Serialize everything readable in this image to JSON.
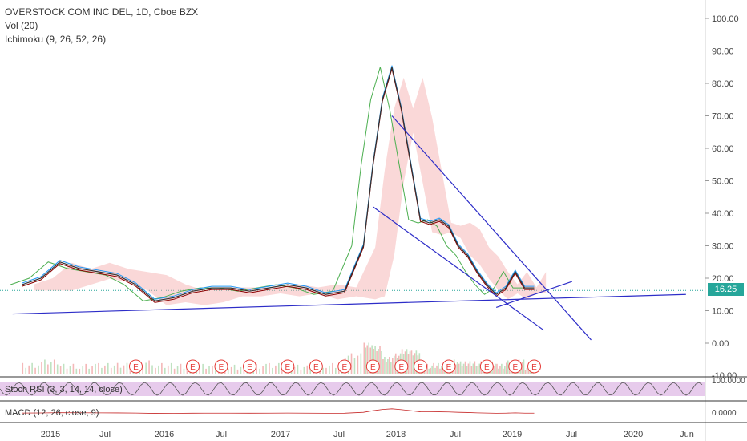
{
  "header": {
    "title": "OVERSTOCK COM INC DEL, 1D, Cboe BZX",
    "vol_label": "Vol (20)",
    "ichimoku_label": "Ichimoku (9, 26, 52, 26)"
  },
  "current_price": "16.25",
  "colors": {
    "price_tag": "#26a69a",
    "trendline": "#2d2dc8",
    "kumo_bull": "#a8d8a8",
    "kumo_bear": "#f4a8a8",
    "conversion_line": "#2196f3",
    "base_line": "#8b0000",
    "lagging_span": "#4caf50",
    "stoch_band": "#e1bee7",
    "earnings_marker": "#e53935",
    "volume_up": "#a5d6a7",
    "volume_down": "#ef9a9a",
    "volume_ma": "#ff9800"
  },
  "icons": {
    "earnings_marker": "E"
  },
  "panes": {
    "stoch": {
      "label": "Stoch RSI (3, 3, 14, 14, close)",
      "axis_label": "100.0000"
    },
    "macd": {
      "label": "MACD (12, 26, close, 9)",
      "axis_label": "0.0000"
    }
  },
  "chart_data": {
    "type": "line",
    "title": "OVERSTOCK COM INC DEL, 1D, Cboe BZX",
    "y_axis_ticks": [
      "100.00",
      "90.00",
      "80.00",
      "70.00",
      "60.00",
      "50.00",
      "40.00",
      "30.00",
      "20.00",
      "10.00",
      "0.00"
    ],
    "y_axis_extra": "-10.00",
    "ylim": [
      -10,
      100
    ],
    "x_axis_ticks": [
      "2015",
      "Jul",
      "2016",
      "Jul",
      "2017",
      "Jul",
      "2018",
      "Jul",
      "2019",
      "Jul",
      "2020",
      "Jun"
    ],
    "price_series": [
      {
        "x": "2014-10",
        "y": 18
      },
      {
        "x": "2014-12",
        "y": 20
      },
      {
        "x": "2015-02",
        "y": 25
      },
      {
        "x": "2015-04",
        "y": 23
      },
      {
        "x": "2015-06",
        "y": 22
      },
      {
        "x": "2015-08",
        "y": 21
      },
      {
        "x": "2015-10",
        "y": 18
      },
      {
        "x": "2015-12",
        "y": 13
      },
      {
        "x": "2016-02",
        "y": 14
      },
      {
        "x": "2016-04",
        "y": 16
      },
      {
        "x": "2016-06",
        "y": 17
      },
      {
        "x": "2016-08",
        "y": 17
      },
      {
        "x": "2016-10",
        "y": 16
      },
      {
        "x": "2016-12",
        "y": 17
      },
      {
        "x": "2017-02",
        "y": 18
      },
      {
        "x": "2017-04",
        "y": 17
      },
      {
        "x": "2017-06",
        "y": 15
      },
      {
        "x": "2017-08",
        "y": 16
      },
      {
        "x": "2017-10",
        "y": 30
      },
      {
        "x": "2017-11",
        "y": 55
      },
      {
        "x": "2017-12",
        "y": 75
      },
      {
        "x": "2018-01",
        "y": 85
      },
      {
        "x": "2018-02",
        "y": 72
      },
      {
        "x": "2018-03",
        "y": 55
      },
      {
        "x": "2018-04",
        "y": 38
      },
      {
        "x": "2018-05",
        "y": 37
      },
      {
        "x": "2018-06",
        "y": 38
      },
      {
        "x": "2018-07",
        "y": 36
      },
      {
        "x": "2018-08",
        "y": 30
      },
      {
        "x": "2018-09",
        "y": 27
      },
      {
        "x": "2018-10",
        "y": 22
      },
      {
        "x": "2018-11",
        "y": 18
      },
      {
        "x": "2018-12",
        "y": 15
      },
      {
        "x": "2019-01",
        "y": 17
      },
      {
        "x": "2019-02",
        "y": 22
      },
      {
        "x": "2019-03",
        "y": 17
      },
      {
        "x": "2019-04",
        "y": 17
      }
    ],
    "trendlines": [
      {
        "from": {
          "x": "2014-09",
          "y": 9
        },
        "to": {
          "x": "2020-08",
          "y": 15
        }
      },
      {
        "from": {
          "x": "2018-01",
          "y": 70
        },
        "to": {
          "x": "2019-10",
          "y": 1
        }
      },
      {
        "from": {
          "x": "2017-11",
          "y": 42
        },
        "to": {
          "x": "2019-05",
          "y": 4
        }
      },
      {
        "from": {
          "x": "2018-12",
          "y": 11
        },
        "to": {
          "x": "2019-08",
          "y": 19
        }
      }
    ],
    "earnings_markers": [
      "2015-10",
      "2016-04",
      "2016-07",
      "2016-10",
      "2017-02",
      "2017-05",
      "2017-08",
      "2017-11",
      "2018-02",
      "2018-04",
      "2018-07",
      "2018-11",
      "2019-02",
      "2019-04"
    ],
    "last_price": 16.25,
    "legend": "top-left",
    "grid": true
  }
}
